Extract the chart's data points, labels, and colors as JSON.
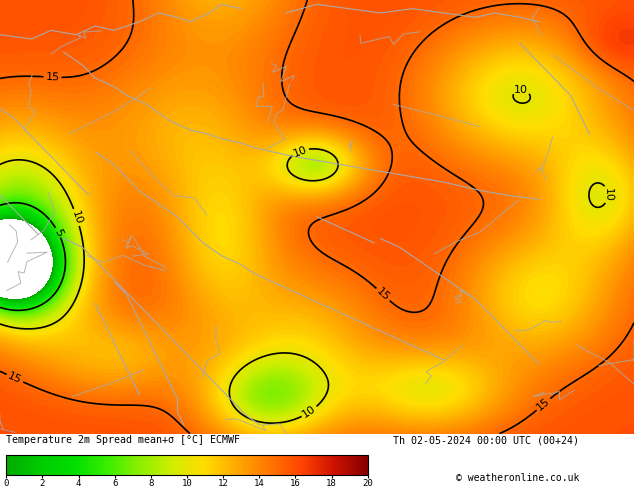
{
  "title_left": "Temperature 2m Spread mean+σ [°C] ECMWF",
  "title_right": "Th 02-05-2024 00:00 UTC (00+24)",
  "copyright": "© weatheronline.co.uk",
  "colorbar_ticks": [
    0,
    2,
    4,
    6,
    8,
    10,
    12,
    14,
    16,
    18,
    20
  ],
  "colorbar_colors": [
    "#00aa00",
    "#00cc00",
    "#00dd00",
    "#33ee00",
    "#88ee00",
    "#ccee00",
    "#ffdd00",
    "#ffaa00",
    "#ff7700",
    "#ff4400",
    "#cc1100",
    "#880000"
  ],
  "bg_color": "#00ee00",
  "fig_width": 6.34,
  "fig_height": 4.9,
  "dpi": 100
}
